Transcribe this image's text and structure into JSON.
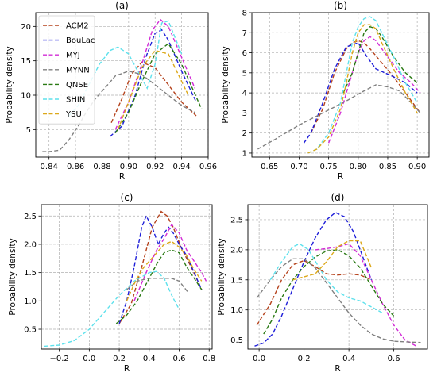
{
  "colors": {
    "ACM2": "#b5421c",
    "BouLac": "#1f1fd9",
    "MYJ": "#d22cd6",
    "MYNN": "#808080",
    "QNSE": "#2a7a14",
    "SHIN": "#5ee1ec",
    "YSU": "#dca81a"
  },
  "chart_data": [
    {
      "type": "line",
      "title": "(a)",
      "xlabel": "R",
      "ylabel": "Probability density",
      "xlim": [
        0.83,
        0.96
      ],
      "ylim": [
        1.0,
        22.0
      ],
      "xticks": [
        0.84,
        0.86,
        0.88,
        0.9,
        0.92,
        0.94,
        0.96
      ],
      "xticklabels": [
        "0.84",
        "0.86",
        "0.88",
        "0.90",
        "0.92",
        "0.94",
        "0.96"
      ],
      "yticks": [
        5,
        10,
        15,
        20
      ],
      "yticklabels": [
        "5",
        "10",
        "15",
        "20"
      ],
      "grid": true,
      "legend": "upper-left",
      "series": [
        {
          "name": "ACM2",
          "x": [
            0.887,
            0.895,
            0.902,
            0.91,
            0.92,
            0.93,
            0.94,
            0.951
          ],
          "y": [
            6.0,
            9.5,
            13.0,
            14.8,
            14.0,
            11.5,
            9.0,
            7.0
          ]
        },
        {
          "name": "BouLac",
          "x": [
            0.886,
            0.895,
            0.905,
            0.913,
            0.92,
            0.925,
            0.93,
            0.94,
            0.951
          ],
          "y": [
            4.0,
            5.5,
            10.0,
            15.5,
            19.0,
            19.5,
            18.0,
            13.5,
            9.0
          ]
        },
        {
          "name": "MYJ",
          "x": [
            0.89,
            0.9,
            0.91,
            0.918,
            0.924,
            0.93,
            0.94,
            0.95
          ],
          "y": [
            5.0,
            9.0,
            14.5,
            19.5,
            21.0,
            20.0,
            15.5,
            11.0
          ]
        },
        {
          "name": "MYNN",
          "x": [
            0.835,
            0.84,
            0.848,
            0.855,
            0.862,
            0.868,
            0.875,
            0.882,
            0.89,
            0.9,
            0.91,
            0.92,
            0.93,
            0.94,
            0.95
          ],
          "y": [
            1.8,
            1.8,
            2.0,
            3.5,
            5.5,
            7.5,
            9.5,
            11.0,
            12.8,
            13.5,
            13.0,
            11.5,
            10.0,
            8.5,
            7.5
          ]
        },
        {
          "name": "QNSE",
          "x": [
            0.89,
            0.9,
            0.91,
            0.92,
            0.93,
            0.94,
            0.955
          ],
          "y": [
            4.5,
            7.5,
            12.0,
            16.0,
            17.5,
            14.5,
            8.0
          ]
        },
        {
          "name": "SHIN",
          "x": [
            0.855,
            0.862,
            0.87,
            0.878,
            0.886,
            0.892,
            0.9,
            0.907,
            0.914,
            0.92,
            0.925,
            0.93,
            0.94
          ],
          "y": [
            7.0,
            8.5,
            11.5,
            14.5,
            16.5,
            17.0,
            16.0,
            13.5,
            11.0,
            14.5,
            20.5,
            20.8,
            16.0
          ]
        },
        {
          "name": "YSU",
          "x": [
            0.892,
            0.9,
            0.91,
            0.92,
            0.93,
            0.94,
            0.945
          ],
          "y": [
            5.0,
            9.0,
            14.0,
            16.5,
            16.0,
            12.0,
            10.0
          ]
        }
      ]
    },
    {
      "type": "line",
      "title": "(b)",
      "xlabel": "R",
      "ylabel": "Probability density",
      "xlim": [
        0.62,
        0.92
      ],
      "ylim": [
        0.8,
        8.0
      ],
      "xticks": [
        0.65,
        0.7,
        0.75,
        0.8,
        0.85,
        0.9
      ],
      "xticklabels": [
        "0.65",
        "0.70",
        "0.75",
        "0.80",
        "0.85",
        "0.90"
      ],
      "yticks": [
        1,
        2,
        3,
        4,
        5,
        6,
        7,
        8
      ],
      "yticklabels": [
        "1",
        "2",
        "3",
        "4",
        "5",
        "6",
        "7",
        "8"
      ],
      "grid": true,
      "legend": "",
      "series": [
        {
          "name": "ACM2",
          "x": [
            0.72,
            0.74,
            0.76,
            0.78,
            0.79,
            0.8,
            0.81,
            0.82,
            0.84,
            0.86,
            0.88,
            0.905
          ],
          "y": [
            2.0,
            3.2,
            5.0,
            6.2,
            6.5,
            6.6,
            6.5,
            6.2,
            5.5,
            4.8,
            4.0,
            3.0
          ]
        },
        {
          "name": "BouLac",
          "x": [
            0.708,
            0.72,
            0.74,
            0.76,
            0.78,
            0.8,
            0.815,
            0.83,
            0.845,
            0.86,
            0.88,
            0.9
          ],
          "y": [
            1.5,
            2.0,
            3.5,
            5.2,
            6.3,
            6.5,
            5.8,
            5.2,
            5.0,
            4.8,
            4.5,
            4.0
          ]
        },
        {
          "name": "MYJ",
          "x": [
            0.75,
            0.77,
            0.79,
            0.8,
            0.81,
            0.82,
            0.83,
            0.85,
            0.87,
            0.89,
            0.905
          ],
          "y": [
            1.5,
            3.0,
            5.0,
            6.0,
            6.6,
            6.8,
            6.6,
            5.8,
            5.0,
            4.5,
            4.0
          ]
        },
        {
          "name": "MYNN",
          "x": [
            0.63,
            0.66,
            0.7,
            0.74,
            0.78,
            0.81,
            0.83,
            0.85,
            0.87,
            0.89,
            0.905
          ],
          "y": [
            1.2,
            1.7,
            2.4,
            3.0,
            3.6,
            4.1,
            4.4,
            4.3,
            4.1,
            3.5,
            3.0
          ]
        },
        {
          "name": "QNSE",
          "x": [
            0.775,
            0.79,
            0.8,
            0.81,
            0.82,
            0.83,
            0.84,
            0.85,
            0.86,
            0.88,
            0.9
          ],
          "y": [
            4.0,
            5.0,
            6.0,
            7.0,
            7.3,
            7.2,
            6.8,
            6.3,
            5.8,
            5.0,
            4.5
          ]
        },
        {
          "name": "SHIN",
          "x": [
            0.715,
            0.73,
            0.75,
            0.77,
            0.78,
            0.79,
            0.8,
            0.81,
            0.82,
            0.83,
            0.84,
            0.86,
            0.88,
            0.9
          ],
          "y": [
            1.0,
            1.2,
            2.0,
            3.5,
            5.0,
            6.5,
            7.3,
            7.7,
            7.8,
            7.6,
            7.0,
            5.8,
            4.5,
            3.5
          ]
        },
        {
          "name": "YSU",
          "x": [
            0.715,
            0.73,
            0.75,
            0.77,
            0.78,
            0.79,
            0.8,
            0.81,
            0.82,
            0.83,
            0.84,
            0.86,
            0.88,
            0.9
          ],
          "y": [
            1.0,
            1.2,
            1.8,
            3.2,
            4.5,
            6.0,
            7.0,
            7.4,
            7.4,
            7.2,
            6.5,
            5.2,
            4.0,
            3.0
          ]
        }
      ]
    },
    {
      "type": "line",
      "title": "(c)",
      "xlabel": "R",
      "ylabel": "Probability density",
      "xlim": [
        -0.32,
        0.82
      ],
      "ylim": [
        0.15,
        2.7
      ],
      "xticks": [
        -0.2,
        0.0,
        0.2,
        0.4,
        0.6,
        0.8
      ],
      "xticklabels": [
        "−0.2",
        "0.0",
        "0.2",
        "0.4",
        "0.6",
        "0.8"
      ],
      "yticks": [
        0.5,
        1.0,
        1.5,
        2.0,
        2.5
      ],
      "yticklabels": [
        "0.5",
        "1.0",
        "1.5",
        "2.0",
        "2.5"
      ],
      "grid": true,
      "legend": "",
      "series": [
        {
          "name": "ACM2",
          "x": [
            0.2,
            0.28,
            0.35,
            0.42,
            0.48,
            0.52,
            0.56,
            0.62,
            0.68,
            0.75
          ],
          "y": [
            0.6,
            0.95,
            1.6,
            2.3,
            2.58,
            2.5,
            2.3,
            1.9,
            1.6,
            1.2
          ]
        },
        {
          "name": "BouLac",
          "x": [
            0.2,
            0.25,
            0.3,
            0.35,
            0.38,
            0.42,
            0.46,
            0.5,
            0.53,
            0.56,
            0.6,
            0.65,
            0.7,
            0.75
          ],
          "y": [
            0.6,
            1.0,
            1.6,
            2.3,
            2.5,
            2.3,
            2.0,
            2.2,
            2.3,
            2.2,
            2.0,
            1.8,
            1.5,
            1.2
          ]
        },
        {
          "name": "MYJ",
          "x": [
            0.3,
            0.38,
            0.45,
            0.5,
            0.55,
            0.6,
            0.65,
            0.7,
            0.75,
            0.78
          ],
          "y": [
            1.0,
            1.5,
            1.9,
            2.1,
            2.35,
            2.2,
            1.9,
            1.7,
            1.5,
            1.35
          ]
        },
        {
          "name": "MYNN",
          "x": [
            0.25,
            0.32,
            0.4,
            0.48,
            0.55,
            0.6,
            0.66
          ],
          "y": [
            1.2,
            1.35,
            1.4,
            1.4,
            1.4,
            1.35,
            1.15
          ]
        },
        {
          "name": "QNSE",
          "x": [
            0.18,
            0.25,
            0.32,
            0.4,
            0.46,
            0.5,
            0.55,
            0.6,
            0.65,
            0.7,
            0.75
          ],
          "y": [
            0.6,
            0.75,
            1.0,
            1.4,
            1.7,
            1.85,
            1.9,
            1.85,
            1.6,
            1.4,
            1.2
          ]
        },
        {
          "name": "SHIN",
          "x": [
            -0.3,
            -0.2,
            -0.1,
            0.0,
            0.1,
            0.2,
            0.3,
            0.4,
            0.45,
            0.5,
            0.55,
            0.6
          ],
          "y": [
            0.2,
            0.22,
            0.3,
            0.5,
            0.8,
            1.1,
            1.35,
            1.5,
            1.52,
            1.4,
            1.1,
            0.85
          ]
        },
        {
          "name": "YSU",
          "x": [
            0.25,
            0.3,
            0.35,
            0.4,
            0.45,
            0.5,
            0.55,
            0.6,
            0.65,
            0.7,
            0.75
          ],
          "y": [
            1.0,
            1.3,
            1.55,
            1.7,
            1.85,
            2.0,
            2.05,
            1.95,
            1.8,
            1.55,
            1.35
          ]
        }
      ]
    },
    {
      "type": "line",
      "title": "(d)",
      "xlabel": "R",
      "ylabel": "Probability density",
      "xlim": [
        -0.05,
        0.75
      ],
      "ylim": [
        0.35,
        2.75
      ],
      "xticks": [
        0.0,
        0.2,
        0.4,
        0.6
      ],
      "xticklabels": [
        "0.0",
        "0.2",
        "0.4",
        "0.6"
      ],
      "yticks": [
        0.5,
        1.0,
        1.5,
        2.0,
        2.5
      ],
      "yticklabels": [
        "0.5",
        "1.0",
        "1.5",
        "2.0",
        "2.5"
      ],
      "grid": true,
      "legend": "",
      "series": [
        {
          "name": "ACM2",
          "x": [
            -0.01,
            0.05,
            0.1,
            0.15,
            0.2,
            0.25,
            0.3,
            0.35,
            0.4,
            0.45,
            0.5
          ],
          "y": [
            0.75,
            1.1,
            1.5,
            1.75,
            1.82,
            1.72,
            1.6,
            1.58,
            1.6,
            1.58,
            1.5
          ]
        },
        {
          "name": "BouLac",
          "x": [
            -0.02,
            0.02,
            0.06,
            0.1,
            0.15,
            0.2,
            0.25,
            0.3,
            0.34,
            0.38,
            0.42,
            0.46,
            0.5
          ],
          "y": [
            0.4,
            0.45,
            0.6,
            0.9,
            1.35,
            1.8,
            2.2,
            2.5,
            2.62,
            2.55,
            2.3,
            1.9,
            1.5
          ]
        },
        {
          "name": "MYJ",
          "x": [
            0.25,
            0.3,
            0.35,
            0.4,
            0.45,
            0.5,
            0.55,
            0.6,
            0.65,
            0.7
          ],
          "y": [
            2.0,
            2.02,
            2.05,
            2.1,
            1.9,
            1.5,
            1.1,
            0.75,
            0.5,
            0.4
          ]
        },
        {
          "name": "MYNN",
          "x": [
            -0.01,
            0.05,
            0.1,
            0.15,
            0.2,
            0.25,
            0.3,
            0.35,
            0.4,
            0.45,
            0.5,
            0.55,
            0.6,
            0.65,
            0.72
          ],
          "y": [
            1.2,
            1.5,
            1.72,
            1.85,
            1.85,
            1.7,
            1.45,
            1.2,
            0.95,
            0.75,
            0.6,
            0.52,
            0.48,
            0.47,
            0.46
          ]
        },
        {
          "name": "QNSE",
          "x": [
            0.02,
            0.06,
            0.1,
            0.15,
            0.2,
            0.25,
            0.3,
            0.35,
            0.4,
            0.45,
            0.5,
            0.55,
            0.6
          ],
          "y": [
            0.6,
            0.85,
            1.2,
            1.5,
            1.72,
            1.88,
            1.98,
            2.0,
            1.9,
            1.7,
            1.4,
            1.1,
            0.9
          ]
        },
        {
          "name": "SHIN",
          "x": [
            0.05,
            0.1,
            0.15,
            0.18,
            0.22,
            0.26,
            0.3,
            0.35,
            0.4,
            0.45,
            0.5,
            0.55
          ],
          "y": [
            1.5,
            1.8,
            2.05,
            2.1,
            2.0,
            1.75,
            1.5,
            1.3,
            1.2,
            1.15,
            1.05,
            0.95
          ]
        },
        {
          "name": "YSU",
          "x": [
            0.15,
            0.2,
            0.25,
            0.3,
            0.35,
            0.4,
            0.45,
            0.5
          ],
          "y": [
            1.5,
            1.55,
            1.6,
            1.8,
            2.05,
            2.15,
            2.15,
            1.7
          ]
        }
      ]
    }
  ]
}
